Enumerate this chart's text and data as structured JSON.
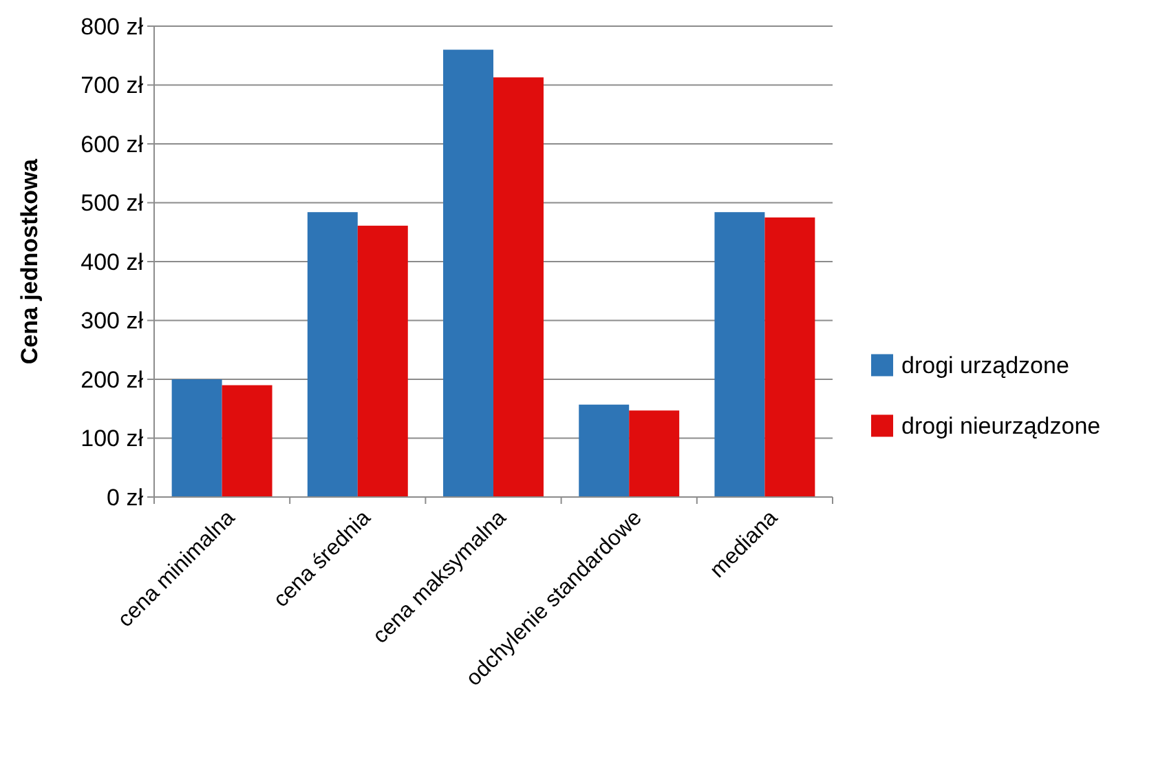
{
  "chart_data": {
    "type": "bar",
    "ylabel": "Cena jednostkowa",
    "categories": [
      "cena minimalna",
      "cena średnia",
      "cena maksymalna",
      "odchylenie standardowe",
      "mediana"
    ],
    "series": [
      {
        "name": "drogi urządzone",
        "color": "#2e75b6",
        "values": [
          200,
          484,
          760,
          157,
          484
        ]
      },
      {
        "name": "drogi nieurządzone",
        "color": "#e00d0d",
        "values": [
          190,
          461,
          713,
          147,
          475
        ]
      }
    ],
    "ylim": [
      0,
      800
    ],
    "yticks": [
      {
        "value": 0,
        "label": "0 zł"
      },
      {
        "value": 100,
        "label": "100 zł"
      },
      {
        "value": 200,
        "label": "200 zł"
      },
      {
        "value": 300,
        "label": "300 zł"
      },
      {
        "value": 400,
        "label": "400 zł"
      },
      {
        "value": 500,
        "label": "500 zł"
      },
      {
        "value": 600,
        "label": "600 zł"
      },
      {
        "value": 700,
        "label": "700 zł"
      },
      {
        "value": 800,
        "label": "800 zł"
      }
    ],
    "grid": "y",
    "legend": "right"
  }
}
